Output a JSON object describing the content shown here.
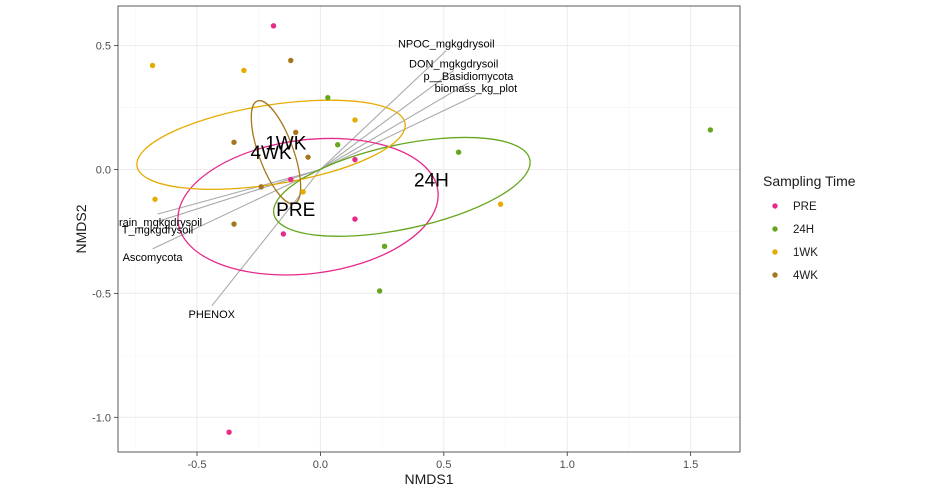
{
  "chart_data": {
    "type": "scatter",
    "xlabel": "NMDS1",
    "ylabel": "NMDS2",
    "xlim": [
      -0.82,
      1.7
    ],
    "ylim": [
      -1.14,
      0.66
    ],
    "x_ticks": [
      -0.5,
      0.0,
      0.5,
      1.0,
      1.5
    ],
    "x_tick_labels": [
      "-0.5",
      "0.0",
      "0.5",
      "1.0",
      "1.5"
    ],
    "y_ticks": [
      0.5,
      0.0,
      -0.5,
      -1.0
    ],
    "y_tick_labels": [
      "0.5",
      "0.0",
      "-0.5",
      "-1.0"
    ],
    "grid": true,
    "legend": {
      "title": "Sampling Time",
      "position": "right",
      "entries": [
        {
          "label": "PRE",
          "color": "#e7298a"
        },
        {
          "label": "24H",
          "color": "#66a61e"
        },
        {
          "label": "1WK",
          "color": "#e6ab02"
        },
        {
          "label": "4WK",
          "color": "#a6761d"
        }
      ]
    },
    "series": [
      {
        "name": "PRE",
        "color": "#e7298a",
        "points": [
          [
            -0.19,
            0.58
          ],
          [
            -0.12,
            -0.04
          ],
          [
            0.14,
            0.04
          ],
          [
            0.14,
            -0.2
          ],
          [
            -0.15,
            -0.26
          ],
          [
            -0.37,
            -1.06
          ]
        ]
      },
      {
        "name": "24H",
        "color": "#66a61e",
        "points": [
          [
            1.58,
            0.16
          ],
          [
            0.56,
            0.07
          ],
          [
            0.03,
            0.29
          ],
          [
            0.07,
            0.1
          ],
          [
            0.26,
            -0.31
          ],
          [
            0.24,
            -0.49
          ]
        ]
      },
      {
        "name": "1WK",
        "color": "#e6ab02",
        "points": [
          [
            -0.68,
            0.42
          ],
          [
            -0.31,
            0.4
          ],
          [
            0.14,
            0.2
          ],
          [
            -0.67,
            -0.12
          ],
          [
            0.73,
            -0.14
          ],
          [
            -0.07,
            -0.09
          ]
        ]
      },
      {
        "name": "4WK",
        "color": "#a6761d",
        "points": [
          [
            -0.12,
            0.44
          ],
          [
            -0.35,
            0.11
          ],
          [
            -0.1,
            0.15
          ],
          [
            -0.24,
            -0.07
          ],
          [
            -0.35,
            -0.22
          ],
          [
            -0.05,
            0.05
          ]
        ]
      }
    ],
    "ellipses": [
      {
        "group": "PRE",
        "color": "#e7298a",
        "cx": -0.05,
        "cy": -0.15,
        "rx": 0.27,
        "ry": 0.53,
        "rotation": -83
      },
      {
        "group": "24H",
        "color": "#66a61e",
        "cx": 0.33,
        "cy": -0.07,
        "rx": 0.53,
        "ry": 0.17,
        "rotation": 12
      },
      {
        "group": "1WK",
        "color": "#e6ab02",
        "cx": -0.2,
        "cy": 0.1,
        "rx": 0.55,
        "ry": 0.16,
        "rotation": 9
      },
      {
        "group": "4WK",
        "color": "#a6761d",
        "cx": -0.18,
        "cy": 0.07,
        "rx": 0.22,
        "ry": 0.07,
        "rotation": -70
      }
    ],
    "group_labels": [
      {
        "text": "1WK",
        "x": -0.14,
        "y": 0.11
      },
      {
        "text": "4WK",
        "x": -0.2,
        "y": 0.07
      },
      {
        "text": "24H",
        "x": 0.45,
        "y": -0.04
      },
      {
        "text": "PRE",
        "x": -0.1,
        "y": -0.16
      }
    ],
    "vectors": [
      {
        "label": "NPOC_mgkgdrysoil",
        "x": 0.51,
        "y": 0.48
      },
      {
        "label": "DON_mgkgdrysoil",
        "x": 0.54,
        "y": 0.4
      },
      {
        "label": "p__Basidiomycota",
        "x": 0.6,
        "y": 0.35
      },
      {
        "label": "biomass_kg_plot",
        "x": 0.63,
        "y": 0.3
      },
      {
        "label": "grain_mgkgdrysoil",
        "x": -0.66,
        "y": -0.18
      },
      {
        "label": "T_mgkgdrysoil",
        "x": -0.66,
        "y": -0.21
      },
      {
        "label": "Ascomycota",
        "x": -0.68,
        "y": -0.32
      },
      {
        "label": "PHENOX",
        "x": -0.44,
        "y": -0.55
      }
    ]
  }
}
